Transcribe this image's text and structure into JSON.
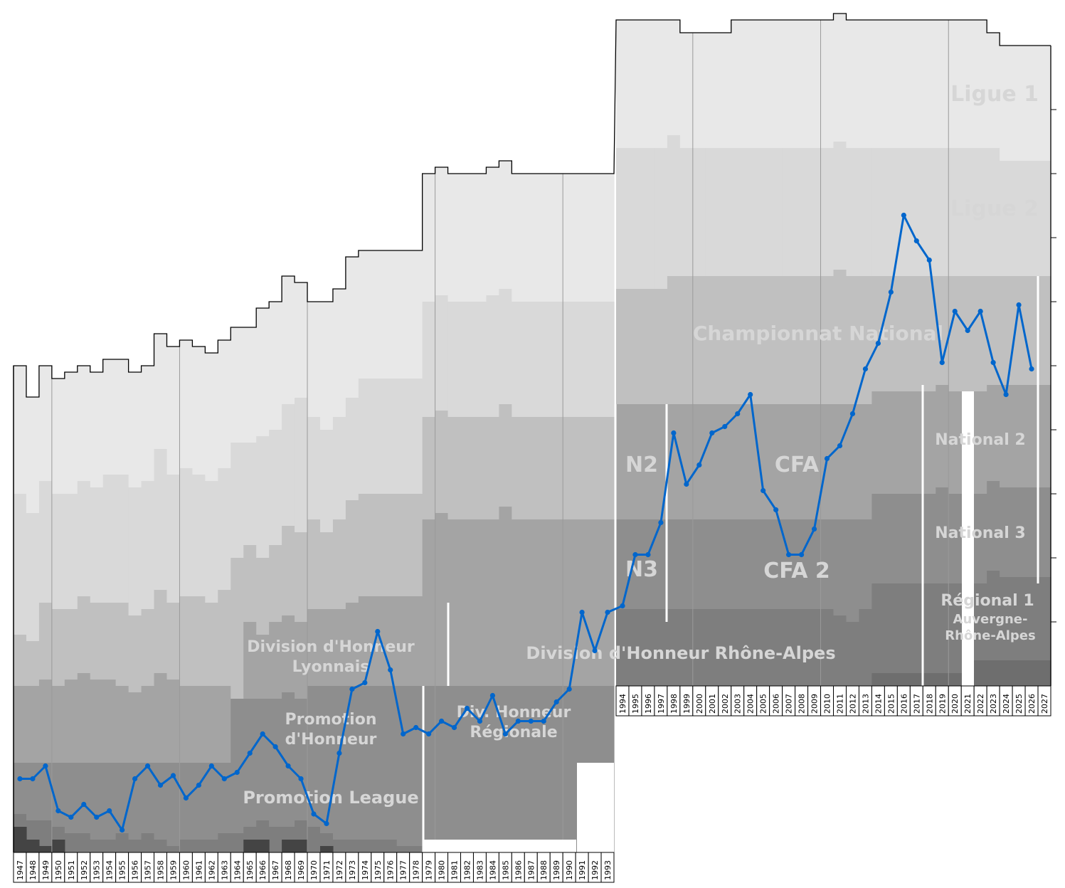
{
  "chart_data": {
    "type": "line",
    "title": "",
    "xlabel": "",
    "ylabel": "",
    "x": [
      1947,
      1948,
      1949,
      1950,
      1951,
      1952,
      1953,
      1954,
      1955,
      1956,
      1957,
      1958,
      1959,
      1960,
      1961,
      1962,
      1963,
      1964,
      1965,
      1966,
      1967,
      1968,
      1969,
      1970,
      1971,
      1972,
      1973,
      1974,
      1975,
      1976,
      1977,
      1978,
      1979,
      1980,
      1981,
      1982,
      1983,
      1984,
      1985,
      1986,
      1987,
      1988,
      1989,
      1990,
      1991,
      1992,
      1993,
      1994,
      1995,
      1996,
      1997,
      1998,
      1999,
      2000,
      2001,
      2002,
      2003,
      2004,
      2005,
      2006,
      2007,
      2008,
      2009,
      2010,
      2011,
      2012,
      2013,
      2014,
      2015,
      2016,
      2017,
      2018,
      2019,
      2020,
      2021,
      2022,
      2023,
      2024,
      2025,
      2026,
      2027
    ],
    "series": [
      {
        "color": "#0066cc",
        "points": [
          [
            1947,
            121.5
          ],
          [
            1948,
            121.5
          ],
          [
            1949,
            119.5
          ],
          [
            1950,
            126.5
          ],
          [
            1951,
            127.5
          ],
          [
            1952,
            125.5
          ],
          [
            1953,
            127.5
          ],
          [
            1954,
            126.5
          ],
          [
            1955,
            129.5
          ],
          [
            1956,
            121.5
          ],
          [
            1957,
            119.5
          ],
          [
            1958,
            122.5
          ],
          [
            1959,
            121.0
          ],
          [
            1960,
            124.5
          ],
          [
            1961,
            122.5
          ],
          [
            1962,
            119.5
          ],
          [
            1963,
            121.5
          ],
          [
            1964,
            120.5
          ],
          [
            1965,
            117.5
          ],
          [
            1966,
            114.5
          ],
          [
            1967,
            116.5
          ],
          [
            1968,
            119.5
          ],
          [
            1969,
            121.5
          ],
          [
            1970,
            127.0
          ],
          [
            1971,
            128.5
          ],
          [
            1972,
            117.5
          ],
          [
            1973,
            107.5
          ],
          [
            1974,
            106.5
          ],
          [
            1975,
            98.5
          ],
          [
            1976,
            104.5
          ],
          [
            1977,
            114.5
          ],
          [
            1978,
            113.5
          ],
          [
            1979,
            114.5
          ],
          [
            1980,
            112.5
          ],
          [
            1981,
            113.5
          ],
          [
            1982,
            110.5
          ],
          [
            1983,
            112.5
          ],
          [
            1984,
            108.5
          ],
          [
            1985,
            114.5
          ],
          [
            1986,
            112.5
          ],
          [
            1987,
            112.5
          ],
          [
            1988,
            112.5
          ],
          [
            1989,
            109.5
          ],
          [
            1990,
            107.5
          ],
          [
            1991,
            95.5
          ],
          [
            1992,
            101.5
          ],
          [
            1993,
            95.5
          ],
          [
            1994,
            94.5
          ],
          [
            1995,
            86.5
          ],
          [
            1996,
            86.5
          ],
          [
            1997,
            81.5
          ],
          [
            1998,
            67.5
          ],
          [
            1999,
            75.5
          ],
          [
            2000,
            72.5
          ],
          [
            2001,
            67.5
          ],
          [
            2002,
            66.5
          ],
          [
            2003,
            64.5
          ],
          [
            2004,
            61.5
          ],
          [
            2005,
            76.5
          ],
          [
            2006,
            79.5
          ],
          [
            2007,
            86.5
          ],
          [
            2008,
            86.5
          ],
          [
            2009,
            82.5
          ],
          [
            2010,
            71.5
          ],
          [
            2011,
            69.5
          ],
          [
            2012,
            64.5
          ],
          [
            2013,
            57.5
          ],
          [
            2014,
            53.5
          ],
          [
            2015,
            45.5
          ],
          [
            2016,
            33.5
          ],
          [
            2017,
            37.5
          ],
          [
            2018,
            40.5
          ],
          [
            2019,
            56.5
          ],
          [
            2020,
            48.5
          ],
          [
            2021,
            51.5
          ],
          [
            2022,
            48.5
          ],
          [
            2023,
            56.5
          ],
          [
            2024,
            61.5
          ],
          [
            2025,
            47.5
          ],
          [
            2026,
            57.5
          ]
        ]
      }
    ],
    "ylim": [
      1,
      133
    ],
    "y_inverted": true,
    "grid_years": [
      1950,
      1960,
      1970,
      1980,
      1990,
      2000,
      2010,
      2020
    ],
    "levels": [
      {
        "name": "Ligue 1"
      },
      {
        "name": "Ligue 2"
      },
      {
        "name": "Championnat National"
      },
      {
        "name": "National 2"
      },
      {
        "name": "N2"
      },
      {
        "name": "CFA"
      },
      {
        "name": "National 3"
      },
      {
        "name": "N3"
      },
      {
        "name": "CFA 2"
      },
      {
        "name": "Régional 1"
      },
      {
        "name": "Auvergne-"
      },
      {
        "name": "Rhône-Alpes"
      },
      {
        "name": "Division d'Honneur"
      },
      {
        "name": "Lyonnais"
      },
      {
        "name": "Division d'Honneur Rhône-Alpes"
      },
      {
        "name": "Promotion"
      },
      {
        "name": "d'Honneur"
      },
      {
        "name": "Div. Honneur"
      },
      {
        "name": "Régionale"
      },
      {
        "name": "Promotion League"
      }
    ],
    "colors": {
      "tier1": "#e8e8e8",
      "tier2": "#d9d9d9",
      "tier3": "#c0c0c0",
      "tier4": "#a4a4a4",
      "tier5": "#8e8e8e",
      "tier6": "#7e7e7e",
      "tier7": "#6e6e6e",
      "tier8": "#5a5a5a",
      "tier9": "#444444",
      "line": "#0066cc",
      "label": "#d6d6d6"
    }
  }
}
